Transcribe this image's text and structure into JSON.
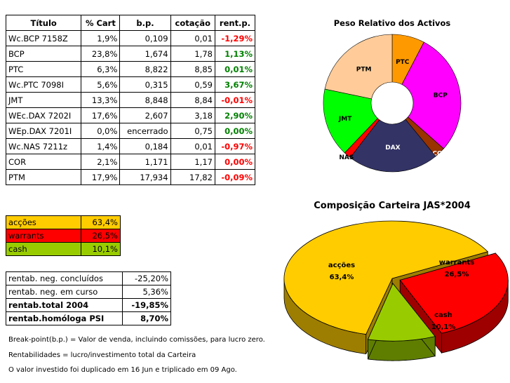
{
  "holdings": {
    "headers": [
      "Título",
      "% Cart",
      "b.p.",
      "cotação",
      "rent.p."
    ],
    "rows": [
      {
        "titulo": "Wc.BCP 7158Z",
        "cart": "1,9%",
        "bp": "0,109",
        "cot": "0,01",
        "rent": "-1,29%",
        "sign": "neg"
      },
      {
        "titulo": "BCP",
        "cart": "23,8%",
        "bp": "1,674",
        "cot": "1,78",
        "rent": "1,13%",
        "sign": "pos"
      },
      {
        "titulo": "PTC",
        "cart": "6,3%",
        "bp": "8,822",
        "cot": "8,85",
        "rent": "0,01%",
        "sign": "pos"
      },
      {
        "titulo": "Wc.PTC 7098I",
        "cart": "5,6%",
        "bp": "0,315",
        "cot": "0,59",
        "rent": "3,67%",
        "sign": "pos"
      },
      {
        "titulo": "JMT",
        "cart": "13,3%",
        "bp": "8,848",
        "cot": "8,84",
        "rent": "-0,01%",
        "sign": "neg"
      },
      {
        "titulo": "WEc.DAX 7202I",
        "cart": "17,6%",
        "bp": "2,607",
        "cot": "3,18",
        "rent": "2,90%",
        "sign": "pos"
      },
      {
        "titulo": "WEp.DAX 7201I",
        "cart": "0,0%",
        "bp": "encerrado",
        "cot": "0,75",
        "rent": "0,00%",
        "sign": "pos"
      },
      {
        "titulo": "Wc.NAS 7211z",
        "cart": "1,4%",
        "bp": "0,184",
        "cot": "0,01",
        "rent": "-0,97%",
        "sign": "neg"
      },
      {
        "titulo": "COR",
        "cart": "2,1%",
        "bp": "1,171",
        "cot": "1,17",
        "rent": "0,00%",
        "sign": "neg"
      },
      {
        "titulo": "PTM",
        "cart": "17,9%",
        "bp": "17,934",
        "cot": "17,82",
        "rent": "-0,09%",
        "sign": "neg"
      }
    ]
  },
  "allocation": [
    {
      "label": "acções",
      "value": "63,4%",
      "bg": "#ffcc00",
      "fg": "#000000"
    },
    {
      "label": "warrants",
      "value": "26,5%",
      "bg": "#ff0000",
      "fg": "#000000"
    },
    {
      "label": "cash",
      "value": "10,1%",
      "bg": "#99cc00",
      "fg": "#000000"
    }
  ],
  "performance": [
    {
      "label": "rentab. neg. concluídos",
      "value": "-25,20%",
      "bold": false
    },
    {
      "label": "rentab. neg. em curso",
      "value": "5,36%",
      "bold": false
    },
    {
      "label": "rentab.total 2004",
      "value": "-19,85%",
      "bold": true
    },
    {
      "label": "rentab.homóloga PSI",
      "value": "8,70%",
      "bold": true
    }
  ],
  "notes": [
    "Break-point(b.p.) = Valor de venda, incluindo comissões, para lucro zero.",
    "Rentabilidades = lucro/investimento total da Carteira",
    "O valor investido foi duplicado em 16 Jun e triplicado em 09 Ago."
  ],
  "chart_data": [
    {
      "type": "pie",
      "variant": "donut",
      "title": "Peso Relativo dos Activos",
      "labels": [
        "PTC",
        "BCP",
        "COR",
        "DAX",
        "NAS",
        "JMT",
        "PTM"
      ],
      "values": [
        6.3,
        23.8,
        2.1,
        17.6,
        1.4,
        13.3,
        17.9
      ],
      "colors": [
        "#ff9900",
        "#ff00ff",
        "#993300",
        "#333366",
        "#ff0000",
        "#00ff00",
        "#ffcc99"
      ],
      "legend": "none"
    },
    {
      "type": "pie",
      "variant": "3d",
      "title": "Composição Carteira JAS*2004",
      "labels": [
        "acções",
        "warrants",
        "cash"
      ],
      "values": [
        63.4,
        26.5,
        10.1
      ],
      "value_labels": [
        "63,4%",
        "26,5%",
        "10,1%"
      ],
      "colors": [
        "#ffcc00",
        "#ff0000",
        "#99cc00"
      ],
      "legend": "none"
    }
  ]
}
